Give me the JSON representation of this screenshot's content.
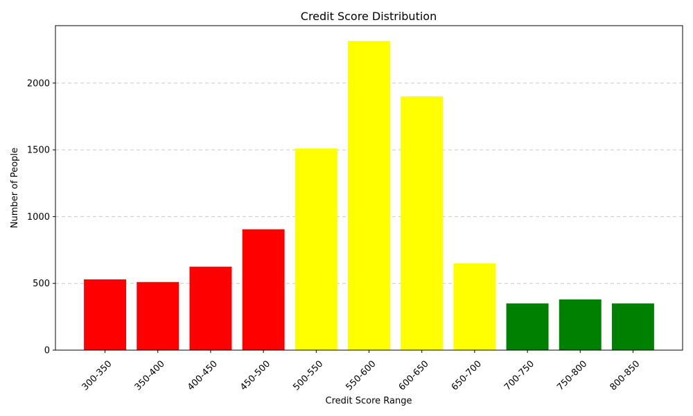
{
  "chart_data": {
    "type": "bar",
    "title": "Credit Score Distribution",
    "xlabel": "Credit Score Range",
    "ylabel": "Number of People",
    "categories": [
      "300-350",
      "350-400",
      "400-450",
      "450-500",
      "500-550",
      "550-600",
      "600-650",
      "650-700",
      "700-750",
      "750-800",
      "800-850"
    ],
    "values": [
      530,
      510,
      625,
      905,
      1510,
      2315,
      1900,
      650,
      350,
      380,
      350
    ],
    "bar_colors": [
      "#ff0000",
      "#ff0000",
      "#ff0000",
      "#ff0000",
      "#ffff00",
      "#ffff00",
      "#ffff00",
      "#ffff00",
      "#008000",
      "#008000",
      "#008000"
    ],
    "ylim": [
      0,
      2430
    ],
    "yticks": [
      0,
      500,
      1000,
      1500,
      2000
    ],
    "grid": "y-dashed",
    "legend": "none"
  }
}
